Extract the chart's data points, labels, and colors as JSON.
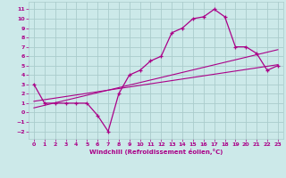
{
  "xlabel": "Windchill (Refroidissement éolien,°C)",
  "bg_color": "#cce9e9",
  "grid_color": "#aacccc",
  "line_color": "#aa0088",
  "xlim": [
    -0.5,
    23.5
  ],
  "ylim": [
    -2.8,
    11.8
  ],
  "xticks": [
    0,
    1,
    2,
    3,
    4,
    5,
    6,
    7,
    8,
    9,
    10,
    11,
    12,
    13,
    14,
    15,
    16,
    17,
    18,
    19,
    20,
    21,
    22,
    23
  ],
  "yticks": [
    -2,
    -1,
    0,
    1,
    2,
    3,
    4,
    5,
    6,
    7,
    8,
    9,
    10,
    11
  ],
  "curve1_x": [
    0,
    1,
    2,
    3,
    4,
    5,
    6,
    7,
    8,
    9,
    10,
    11,
    12,
    13,
    14,
    15,
    16,
    17,
    18,
    19,
    20,
    21,
    22,
    23
  ],
  "curve1_y": [
    3.0,
    1.0,
    1.0,
    1.0,
    1.0,
    1.0,
    -0.3,
    -2.0,
    2.0,
    4.0,
    4.5,
    5.5,
    6.0,
    8.5,
    9.0,
    10.0,
    10.2,
    11.0,
    10.2,
    7.0,
    7.0,
    6.3,
    4.5,
    5.0
  ],
  "line2_x": [
    0,
    23
  ],
  "line2_y": [
    1.2,
    5.1
  ],
  "line3_x": [
    0,
    23
  ],
  "line3_y": [
    0.5,
    6.7
  ]
}
